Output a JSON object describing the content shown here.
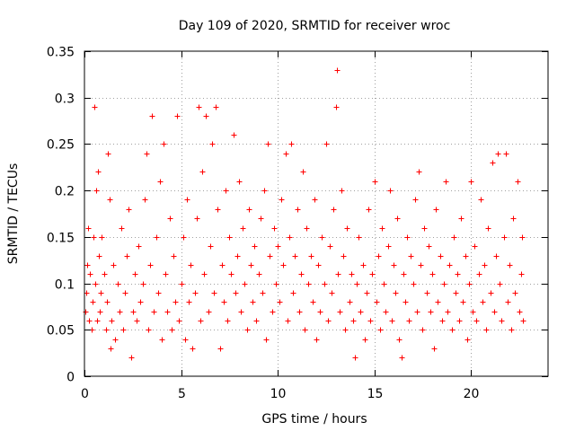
{
  "chart_data": {
    "type": "scatter",
    "title": "Day 109 of 2020, SRMTID for receiver wroc",
    "xlabel": "GPS time / hours",
    "ylabel": "SRMTID / TECUs",
    "xlim": [
      0,
      24
    ],
    "ylim": [
      0,
      0.35
    ],
    "xticks": [
      0,
      5,
      10,
      15,
      20
    ],
    "xtick_labels": [
      "0",
      "5",
      "10",
      "15",
      "20"
    ],
    "yticks": [
      0,
      0.05,
      0.1,
      0.15,
      0.2,
      0.25,
      0.3,
      0.35
    ],
    "ytick_labels": [
      "0",
      "0.05",
      "0.1",
      "0.15",
      "0.2",
      "0.25",
      "0.3",
      "0.35"
    ],
    "grid": true,
    "marker": "+",
    "color": "#ff0000",
    "series": [
      {
        "name": "SRMTID",
        "points": [
          [
            0.05,
            0.07
          ],
          [
            0.1,
            0.09
          ],
          [
            0.15,
            0.12
          ],
          [
            0.2,
            0.16
          ],
          [
            0.25,
            0.06
          ],
          [
            0.3,
            0.11
          ],
          [
            0.35,
            0.05
          ],
          [
            0.4,
            0.08
          ],
          [
            0.45,
            0.15
          ],
          [
            0.5,
            0.29
          ],
          [
            0.55,
            0.1
          ],
          [
            0.6,
            0.2
          ],
          [
            0.65,
            0.06
          ],
          [
            0.7,
            0.22
          ],
          [
            0.75,
            0.13
          ],
          [
            0.8,
            0.07
          ],
          [
            0.85,
            0.09
          ],
          [
            0.9,
            0.15
          ],
          [
            1.0,
            0.11
          ],
          [
            1.1,
            0.05
          ],
          [
            1.15,
            0.08
          ],
          [
            1.2,
            0.24
          ],
          [
            1.3,
            0.19
          ],
          [
            1.35,
            0.03
          ],
          [
            1.4,
            0.06
          ],
          [
            1.5,
            0.12
          ],
          [
            1.6,
            0.04
          ],
          [
            1.7,
            0.1
          ],
          [
            1.8,
            0.07
          ],
          [
            1.9,
            0.16
          ],
          [
            2.0,
            0.05
          ],
          [
            2.1,
            0.09
          ],
          [
            2.2,
            0.13
          ],
          [
            2.3,
            0.18
          ],
          [
            2.4,
            0.02
          ],
          [
            2.5,
            0.07
          ],
          [
            2.6,
            0.11
          ],
          [
            2.7,
            0.06
          ],
          [
            2.8,
            0.14
          ],
          [
            2.9,
            0.08
          ],
          [
            3.0,
            0.1
          ],
          [
            3.1,
            0.19
          ],
          [
            3.2,
            0.24
          ],
          [
            3.3,
            0.05
          ],
          [
            3.4,
            0.12
          ],
          [
            3.5,
            0.28
          ],
          [
            3.6,
            0.07
          ],
          [
            3.7,
            0.15
          ],
          [
            3.8,
            0.09
          ],
          [
            3.9,
            0.21
          ],
          [
            4.0,
            0.04
          ],
          [
            4.1,
            0.25
          ],
          [
            4.2,
            0.11
          ],
          [
            4.3,
            0.07
          ],
          [
            4.4,
            0.17
          ],
          [
            4.5,
            0.05
          ],
          [
            4.6,
            0.13
          ],
          [
            4.7,
            0.08
          ],
          [
            4.8,
            0.28
          ],
          [
            4.9,
            0.06
          ],
          [
            5.0,
            0.1
          ],
          [
            5.1,
            0.15
          ],
          [
            5.2,
            0.04
          ],
          [
            5.3,
            0.19
          ],
          [
            5.4,
            0.08
          ],
          [
            5.5,
            0.12
          ],
          [
            5.6,
            0.03
          ],
          [
            5.7,
            0.09
          ],
          [
            5.8,
            0.17
          ],
          [
            5.9,
            0.29
          ],
          [
            6.0,
            0.06
          ],
          [
            6.1,
            0.22
          ],
          [
            6.2,
            0.11
          ],
          [
            6.3,
            0.28
          ],
          [
            6.4,
            0.07
          ],
          [
            6.5,
            0.14
          ],
          [
            6.6,
            0.25
          ],
          [
            6.7,
            0.09
          ],
          [
            6.8,
            0.29
          ],
          [
            6.9,
            0.18
          ],
          [
            7.0,
            0.03
          ],
          [
            7.1,
            0.12
          ],
          [
            7.2,
            0.08
          ],
          [
            7.3,
            0.2
          ],
          [
            7.4,
            0.06
          ],
          [
            7.5,
            0.15
          ],
          [
            7.6,
            0.11
          ],
          [
            7.7,
            0.26
          ],
          [
            7.8,
            0.09
          ],
          [
            7.9,
            0.13
          ],
          [
            8.0,
            0.21
          ],
          [
            8.1,
            0.07
          ],
          [
            8.2,
            0.16
          ],
          [
            8.3,
            0.1
          ],
          [
            8.4,
            0.05
          ],
          [
            8.5,
            0.18
          ],
          [
            8.6,
            0.12
          ],
          [
            8.7,
            0.08
          ],
          [
            8.8,
            0.14
          ],
          [
            8.9,
            0.06
          ],
          [
            9.0,
            0.11
          ],
          [
            9.1,
            0.17
          ],
          [
            9.2,
            0.09
          ],
          [
            9.3,
            0.2
          ],
          [
            9.4,
            0.04
          ],
          [
            9.5,
            0.25
          ],
          [
            9.6,
            0.13
          ],
          [
            9.7,
            0.07
          ],
          [
            9.8,
            0.16
          ],
          [
            9.9,
            0.1
          ],
          [
            10.0,
            0.14
          ],
          [
            10.1,
            0.08
          ],
          [
            10.2,
            0.19
          ],
          [
            10.3,
            0.12
          ],
          [
            10.4,
            0.24
          ],
          [
            10.5,
            0.06
          ],
          [
            10.6,
            0.15
          ],
          [
            10.7,
            0.25
          ],
          [
            10.8,
            0.09
          ],
          [
            10.9,
            0.13
          ],
          [
            11.0,
            0.18
          ],
          [
            11.1,
            0.07
          ],
          [
            11.2,
            0.11
          ],
          [
            11.3,
            0.22
          ],
          [
            11.4,
            0.05
          ],
          [
            11.5,
            0.16
          ],
          [
            11.6,
            0.1
          ],
          [
            11.7,
            0.13
          ],
          [
            11.8,
            0.08
          ],
          [
            11.9,
            0.19
          ],
          [
            12.0,
            0.04
          ],
          [
            12.1,
            0.12
          ],
          [
            12.2,
            0.07
          ],
          [
            12.3,
            0.15
          ],
          [
            12.4,
            0.1
          ],
          [
            12.5,
            0.25
          ],
          [
            12.6,
            0.06
          ],
          [
            12.7,
            0.14
          ],
          [
            12.8,
            0.09
          ],
          [
            12.9,
            0.18
          ],
          [
            13.0,
            0.29
          ],
          [
            13.05,
            0.33
          ],
          [
            13.1,
            0.11
          ],
          [
            13.2,
            0.07
          ],
          [
            13.3,
            0.2
          ],
          [
            13.4,
            0.13
          ],
          [
            13.5,
            0.05
          ],
          [
            13.6,
            0.16
          ],
          [
            13.7,
            0.08
          ],
          [
            13.8,
            0.11
          ],
          [
            13.9,
            0.06
          ],
          [
            14.0,
            0.02
          ],
          [
            14.1,
            0.1
          ],
          [
            14.2,
            0.15
          ],
          [
            14.3,
            0.07
          ],
          [
            14.4,
            0.12
          ],
          [
            14.5,
            0.04
          ],
          [
            14.6,
            0.09
          ],
          [
            14.7,
            0.18
          ],
          [
            14.8,
            0.06
          ],
          [
            14.9,
            0.11
          ],
          [
            15.0,
            0.21
          ],
          [
            15.1,
            0.08
          ],
          [
            15.2,
            0.13
          ],
          [
            15.3,
            0.05
          ],
          [
            15.4,
            0.16
          ],
          [
            15.5,
            0.1
          ],
          [
            15.6,
            0.07
          ],
          [
            15.7,
            0.14
          ],
          [
            15.8,
            0.2
          ],
          [
            15.9,
            0.06
          ],
          [
            16.0,
            0.12
          ],
          [
            16.1,
            0.09
          ],
          [
            16.2,
            0.17
          ],
          [
            16.3,
            0.04
          ],
          [
            16.4,
            0.02
          ],
          [
            16.5,
            0.11
          ],
          [
            16.6,
            0.08
          ],
          [
            16.7,
            0.15
          ],
          [
            16.8,
            0.06
          ],
          [
            16.9,
            0.13
          ],
          [
            17.0,
            0.1
          ],
          [
            17.1,
            0.19
          ],
          [
            17.2,
            0.07
          ],
          [
            17.3,
            0.22
          ],
          [
            17.4,
            0.12
          ],
          [
            17.5,
            0.05
          ],
          [
            17.6,
            0.16
          ],
          [
            17.7,
            0.09
          ],
          [
            17.8,
            0.14
          ],
          [
            17.9,
            0.07
          ],
          [
            18.0,
            0.11
          ],
          [
            18.1,
            0.03
          ],
          [
            18.2,
            0.18
          ],
          [
            18.3,
            0.08
          ],
          [
            18.4,
            0.13
          ],
          [
            18.5,
            0.06
          ],
          [
            18.6,
            0.1
          ],
          [
            18.7,
            0.21
          ],
          [
            18.8,
            0.07
          ],
          [
            18.9,
            0.12
          ],
          [
            19.0,
            0.05
          ],
          [
            19.1,
            0.15
          ],
          [
            19.2,
            0.09
          ],
          [
            19.3,
            0.11
          ],
          [
            19.4,
            0.06
          ],
          [
            19.5,
            0.17
          ],
          [
            19.6,
            0.08
          ],
          [
            19.7,
            0.13
          ],
          [
            19.8,
            0.04
          ],
          [
            19.9,
            0.1
          ],
          [
            20.0,
            0.21
          ],
          [
            20.1,
            0.07
          ],
          [
            20.2,
            0.14
          ],
          [
            20.3,
            0.06
          ],
          [
            20.4,
            0.11
          ],
          [
            20.5,
            0.19
          ],
          [
            20.6,
            0.08
          ],
          [
            20.7,
            0.12
          ],
          [
            20.8,
            0.05
          ],
          [
            20.9,
            0.16
          ],
          [
            21.0,
            0.09
          ],
          [
            21.1,
            0.23
          ],
          [
            21.2,
            0.07
          ],
          [
            21.3,
            0.13
          ],
          [
            21.4,
            0.24
          ],
          [
            21.5,
            0.1
          ],
          [
            21.6,
            0.06
          ],
          [
            21.7,
            0.15
          ],
          [
            21.8,
            0.24
          ],
          [
            21.9,
            0.08
          ],
          [
            22.0,
            0.12
          ],
          [
            22.1,
            0.05
          ],
          [
            22.2,
            0.17
          ],
          [
            22.3,
            0.09
          ],
          [
            22.4,
            0.21
          ],
          [
            22.5,
            0.07
          ],
          [
            22.6,
            0.11
          ],
          [
            22.65,
            0.15
          ],
          [
            22.7,
            0.06
          ]
        ]
      }
    ]
  }
}
